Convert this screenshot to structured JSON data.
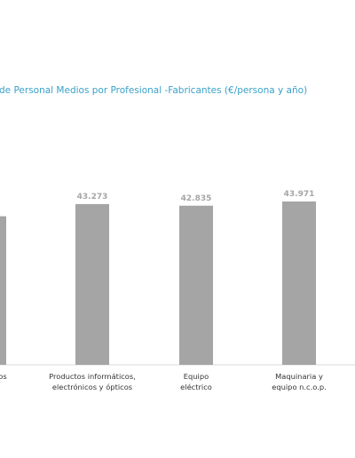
{
  "chart_data": {
    "type": "bar",
    "title": "de Personal Medios por Profesional -Fabricantes  (€/persona y año)",
    "categories": [
      {
        "lines": [
          "",
          "os"
        ],
        "value": 40000,
        "label": ""
      },
      {
        "lines": [
          "Productos informáticos,",
          "electrónicos y ópticos"
        ],
        "value": 43273,
        "label": "43.273"
      },
      {
        "lines": [
          "Equipo",
          "eléctrico"
        ],
        "value": 42835,
        "label": "42.835"
      },
      {
        "lines": [
          "Maquinaria y",
          "equipo n.c.o.p."
        ],
        "value": 43971,
        "label": "43.971"
      }
    ],
    "partial_first_category_line": "ios",
    "ylim": [
      0,
      44500
    ],
    "bar_color": "#a5a5a5",
    "title_color": "#3aa1c8",
    "axis_color": "#d9d9d9"
  }
}
